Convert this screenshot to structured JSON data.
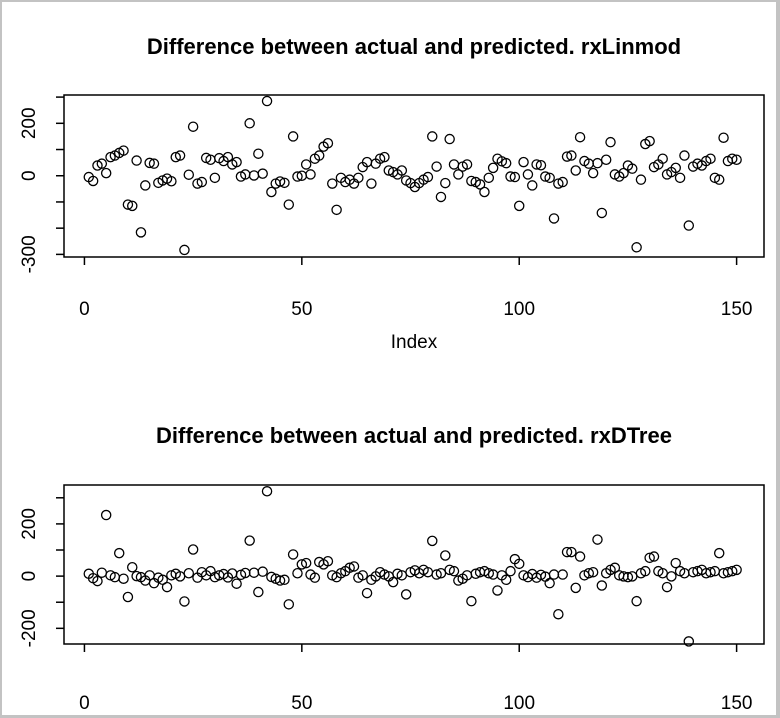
{
  "figure": {
    "background_color": "#ffffff",
    "border_color": "#c3c3c3",
    "point_style": "open-circle"
  },
  "chart_data": [
    {
      "type": "scatter",
      "title": "Difference between actual and predicted. rxLinmod",
      "xlabel": "Index",
      "ylabel": "",
      "x_start": 1,
      "x_ticks": [
        0,
        50,
        100,
        150
      ],
      "y_ticks": [
        300,
        200,
        100,
        0,
        -100,
        -200,
        -300
      ],
      "y_tick_labels_shown": [
        200,
        0,
        -300
      ],
      "xlim": [
        -4.7,
        156.3
      ],
      "ylim": [
        -310,
        308
      ],
      "grid": false,
      "legend": "none",
      "marker": "open-circle",
      "marker_color": "#000000",
      "values": [
        -5,
        -20,
        39,
        46,
        10,
        71,
        77,
        87,
        96,
        -110,
        -115,
        58,
        -216,
        -37,
        49,
        46,
        -27,
        -18,
        -11,
        -21,
        71,
        77,
        -283,
        4,
        187,
        -30,
        -24,
        68,
        61,
        -8,
        67,
        56,
        71,
        43,
        52,
        -3,
        5,
        200,
        1,
        84,
        8,
        285,
        -62,
        -30,
        -22,
        -27,
        -110,
        150,
        -3,
        0,
        43,
        5,
        65,
        77,
        111,
        124,
        -30,
        -130,
        -8,
        -24,
        -15,
        -30,
        -8,
        33,
        52,
        -30,
        46,
        65,
        71,
        20,
        14,
        5,
        20,
        -18,
        -28,
        -43,
        -28,
        -15,
        -5,
        150,
        35,
        -81,
        -28,
        140,
        43,
        5,
        35,
        43,
        -20,
        -24,
        -33,
        -62,
        -8,
        30,
        65,
        55,
        48,
        -3,
        -5,
        -115,
        52,
        5,
        -37,
        43,
        40,
        -3,
        -8,
        -163,
        -30,
        -24,
        73,
        77,
        20,
        147,
        56,
        46,
        10,
        48,
        -142,
        61,
        128,
        5,
        -3,
        10,
        39,
        27,
        -273,
        -15,
        121,
        132,
        33,
        43,
        65,
        5,
        14,
        30,
        -8,
        77,
        -190,
        35,
        46,
        39,
        56,
        65,
        -8,
        -15,
        145,
        56,
        65,
        61
      ]
    },
    {
      "type": "scatter",
      "title": "Difference between actual and predicted. rxDTree",
      "xlabel": "",
      "ylabel": "",
      "x_start": 1,
      "x_ticks": [
        0,
        50,
        100,
        150
      ],
      "y_ticks": [
        300,
        200,
        100,
        0,
        -100,
        -200
      ],
      "y_tick_labels_shown": [
        200,
        0,
        -200
      ],
      "xlim": [
        -4.7,
        156.3
      ],
      "ylim": [
        -260,
        349
      ],
      "grid": false,
      "legend": "none",
      "marker": "open-circle",
      "marker_color": "#000000",
      "values": [
        9,
        -8,
        -19,
        13,
        234,
        3,
        -4,
        88,
        -10,
        -80,
        34,
        0,
        -4,
        -17,
        3,
        -27,
        -6,
        -14,
        -42,
        3,
        9,
        -1,
        -97,
        11,
        102,
        -6,
        15,
        3,
        19,
        -4,
        3,
        8,
        -5,
        10,
        -29,
        5,
        12,
        136,
        13,
        -61,
        17,
        325,
        -3,
        -10,
        -17,
        -14,
        -108,
        83,
        11,
        45,
        50,
        6,
        -6,
        54,
        45,
        57,
        3,
        -4,
        11,
        19,
        32,
        37,
        -6,
        3,
        -65,
        -14,
        -1,
        15,
        6,
        -1,
        -23,
        9,
        3,
        -70,
        15,
        22,
        11,
        24,
        15,
        135,
        6,
        11,
        79,
        24,
        19,
        -17,
        -10,
        3,
        -96,
        9,
        15,
        19,
        11,
        6,
        -55,
        3,
        -14,
        19,
        65,
        47,
        3,
        -4,
        8,
        -6,
        5,
        -2,
        -27,
        6,
        -146,
        6,
        92,
        92,
        -45,
        75,
        3,
        11,
        15,
        140,
        -36,
        11,
        24,
        32,
        3,
        -1,
        -4,
        -1,
        -96,
        11,
        19,
        70,
        75,
        19,
        11,
        -42,
        -1,
        50,
        19,
        11,
        -250,
        15,
        19,
        24,
        11,
        15,
        19,
        88,
        11,
        15,
        19,
        24
      ]
    }
  ]
}
